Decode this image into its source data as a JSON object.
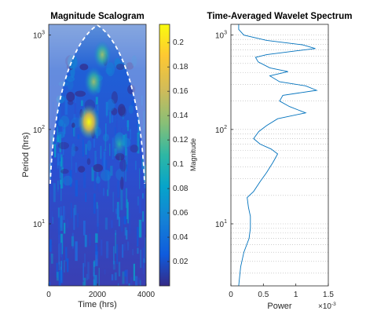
{
  "chart_data": [
    {
      "type": "heatmap",
      "title": "Magnitude Scalogram",
      "xlabel": "Time (hrs)",
      "ylabel": "Period (hrs)",
      "xlim": [
        0,
        4000
      ],
      "ylim": [
        2.2,
        1300
      ],
      "yscale": "log",
      "xticks": [
        "0",
        "2000",
        "4000"
      ],
      "yticks": [
        {
          "label": "10",
          "sup": "1",
          "value": 10
        },
        {
          "label": "10",
          "sup": "2",
          "value": 100
        },
        {
          "label": "10",
          "sup": "3",
          "value": 1000
        }
      ],
      "colormap": "parula",
      "colorbar": {
        "label": "Magnitude",
        "range": [
          0,
          0.215
        ],
        "ticks": [
          "0.02",
          "0.04",
          "0.06",
          "0.08",
          "0.1",
          "0.12",
          "0.14",
          "0.16",
          "0.18",
          "0.2"
        ],
        "tick_values": [
          0.02,
          0.04,
          0.06,
          0.08,
          0.1,
          0.12,
          0.14,
          0.16,
          0.18,
          0.2
        ]
      },
      "cone_of_influence": {
        "style": "dashed",
        "color": "#ffffff"
      },
      "hotspots": [
        {
          "time": 1650,
          "period": 120,
          "magnitude": 0.2
        },
        {
          "time": 1850,
          "period": 320,
          "magnitude": 0.15
        },
        {
          "time": 2200,
          "period": 620,
          "magnitude": 0.13
        },
        {
          "time": 2900,
          "period": 70,
          "magnitude": 0.1
        }
      ]
    },
    {
      "type": "line",
      "title": "Time-Averaged Wavelet Spectrum",
      "xlabel": "Power",
      "ylabel": "",
      "x_exponent_label": "×10",
      "x_exponent_sup": "-3",
      "xlim": [
        0,
        1.5
      ],
      "ylim": [
        2.2,
        1300
      ],
      "yscale": "log",
      "grid": true,
      "xticks": [
        "0",
        "0.5",
        "1",
        "1.5"
      ],
      "yticks": [
        {
          "label": "10",
          "sup": "1",
          "value": 10
        },
        {
          "label": "10",
          "sup": "2",
          "value": 100
        },
        {
          "label": "10",
          "sup": "3",
          "value": 1000
        }
      ],
      "series": [
        {
          "color": "#0072bd",
          "points": [
            [
              0.12,
              2.2
            ],
            [
              0.15,
              3.5
            ],
            [
              0.2,
              5
            ],
            [
              0.28,
              7
            ],
            [
              0.3,
              9
            ],
            [
              0.3,
              12
            ],
            [
              0.27,
              15
            ],
            [
              0.25,
              19
            ],
            [
              0.35,
              22
            ],
            [
              0.45,
              28
            ],
            [
              0.55,
              35
            ],
            [
              0.65,
              45
            ],
            [
              0.72,
              55
            ],
            [
              0.62,
              62
            ],
            [
              0.45,
              70
            ],
            [
              0.35,
              80
            ],
            [
              0.43,
              95
            ],
            [
              0.55,
              110
            ],
            [
              0.72,
              130
            ],
            [
              1.15,
              150
            ],
            [
              0.9,
              175
            ],
            [
              0.75,
              200
            ],
            [
              0.8,
              230
            ],
            [
              1.32,
              260
            ],
            [
              1.15,
              290
            ],
            [
              0.75,
              320
            ],
            [
              0.6,
              370
            ],
            [
              0.88,
              410
            ],
            [
              0.6,
              450
            ],
            [
              0.42,
              520
            ],
            [
              0.38,
              580
            ],
            [
              0.55,
              620
            ],
            [
              1.0,
              680
            ],
            [
              1.3,
              720
            ],
            [
              1.1,
              790
            ],
            [
              0.55,
              880
            ],
            [
              0.2,
              1000
            ],
            [
              0.12,
              1150
            ],
            [
              0.12,
              1300
            ]
          ]
        }
      ]
    }
  ]
}
